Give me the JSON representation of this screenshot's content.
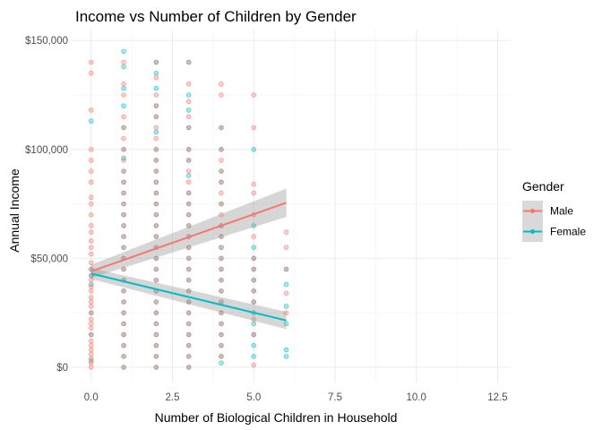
{
  "chart_data": {
    "type": "scatter",
    "title": "Income vs Number of Children by Gender",
    "xlabel": "Number of Biological Children in Household",
    "ylabel": "Annual Income",
    "xlim": [
      -0.6,
      12.9
    ],
    "ylim": [
      -7000,
      155000
    ],
    "x_ticks": [
      0,
      2.5,
      5,
      7.5,
      10,
      12.5
    ],
    "x_tick_labels": [
      "0.0",
      "2.5",
      "5.0",
      "7.5",
      "10.0",
      "12.5"
    ],
    "y_ticks": [
      0,
      50000,
      100000,
      150000
    ],
    "y_tick_labels": [
      "$0",
      "$50,000",
      "$100,000",
      "$150,000"
    ],
    "grid": true,
    "legend": {
      "title": "Gender",
      "position": "right"
    },
    "series": [
      {
        "name": "Male",
        "color": "#F8766D",
        "points": [
          [
            0,
            140000
          ],
          [
            0,
            135000
          ],
          [
            0,
            118000
          ],
          [
            0,
            100000
          ],
          [
            0,
            95000
          ],
          [
            0,
            90000
          ],
          [
            0,
            85000
          ],
          [
            0,
            78000
          ],
          [
            0,
            75000
          ],
          [
            0,
            70000
          ],
          [
            0,
            65000
          ],
          [
            0,
            62000
          ],
          [
            0,
            58000
          ],
          [
            0,
            55000
          ],
          [
            0,
            52000
          ],
          [
            0,
            48000
          ],
          [
            0,
            45000
          ],
          [
            0,
            42000
          ],
          [
            0,
            40000
          ],
          [
            0,
            37000
          ],
          [
            0,
            35000
          ],
          [
            0,
            32000
          ],
          [
            0,
            30000
          ],
          [
            0,
            28000
          ],
          [
            0,
            25000
          ],
          [
            0,
            22000
          ],
          [
            0,
            20000
          ],
          [
            0,
            18000
          ],
          [
            0,
            15000
          ],
          [
            0,
            12000
          ],
          [
            0,
            10000
          ],
          [
            0,
            8000
          ],
          [
            0,
            6000
          ],
          [
            0,
            4000
          ],
          [
            0,
            2000
          ],
          [
            0,
            0
          ],
          [
            1,
            140000
          ],
          [
            1,
            130000
          ],
          [
            1,
            125000
          ],
          [
            1,
            115000
          ],
          [
            1,
            110000
          ],
          [
            1,
            105000
          ],
          [
            1,
            100000
          ],
          [
            1,
            95000
          ],
          [
            1,
            90000
          ],
          [
            1,
            85000
          ],
          [
            1,
            80000
          ],
          [
            1,
            75000
          ],
          [
            1,
            70000
          ],
          [
            1,
            65000
          ],
          [
            1,
            60000
          ],
          [
            1,
            55000
          ],
          [
            1,
            50000
          ],
          [
            1,
            45000
          ],
          [
            1,
            40000
          ],
          [
            1,
            35000
          ],
          [
            1,
            30000
          ],
          [
            1,
            25000
          ],
          [
            1,
            20000
          ],
          [
            1,
            15000
          ],
          [
            1,
            10000
          ],
          [
            1,
            5000
          ],
          [
            1,
            0
          ],
          [
            2,
            140000
          ],
          [
            2,
            133000
          ],
          [
            2,
            125000
          ],
          [
            2,
            120000
          ],
          [
            2,
            115000
          ],
          [
            2,
            110000
          ],
          [
            2,
            105000
          ],
          [
            2,
            100000
          ],
          [
            2,
            95000
          ],
          [
            2,
            90000
          ],
          [
            2,
            85000
          ],
          [
            2,
            80000
          ],
          [
            2,
            75000
          ],
          [
            2,
            70000
          ],
          [
            2,
            65000
          ],
          [
            2,
            60000
          ],
          [
            2,
            55000
          ],
          [
            2,
            50000
          ],
          [
            2,
            45000
          ],
          [
            2,
            40000
          ],
          [
            2,
            35000
          ],
          [
            2,
            30000
          ],
          [
            2,
            25000
          ],
          [
            2,
            20000
          ],
          [
            2,
            15000
          ],
          [
            2,
            10000
          ],
          [
            2,
            5000
          ],
          [
            2,
            0
          ],
          [
            3,
            140000
          ],
          [
            3,
            130000
          ],
          [
            3,
            122000
          ],
          [
            3,
            115000
          ],
          [
            3,
            110000
          ],
          [
            3,
            100000
          ],
          [
            3,
            95000
          ],
          [
            3,
            90000
          ],
          [
            3,
            85000
          ],
          [
            3,
            80000
          ],
          [
            3,
            75000
          ],
          [
            3,
            70000
          ],
          [
            3,
            65000
          ],
          [
            3,
            60000
          ],
          [
            3,
            55000
          ],
          [
            3,
            50000
          ],
          [
            3,
            45000
          ],
          [
            3,
            40000
          ],
          [
            3,
            35000
          ],
          [
            3,
            30000
          ],
          [
            3,
            25000
          ],
          [
            3,
            20000
          ],
          [
            3,
            15000
          ],
          [
            3,
            10000
          ],
          [
            3,
            5000
          ],
          [
            3,
            0
          ],
          [
            4,
            130000
          ],
          [
            4,
            125000
          ],
          [
            4,
            110000
          ],
          [
            4,
            100000
          ],
          [
            4,
            95000
          ],
          [
            4,
            90000
          ],
          [
            4,
            85000
          ],
          [
            4,
            80000
          ],
          [
            4,
            75000
          ],
          [
            4,
            70000
          ],
          [
            4,
            65000
          ],
          [
            4,
            60000
          ],
          [
            4,
            55000
          ],
          [
            4,
            50000
          ],
          [
            4,
            45000
          ],
          [
            4,
            40000
          ],
          [
            4,
            35000
          ],
          [
            4,
            30000
          ],
          [
            4,
            25000
          ],
          [
            4,
            20000
          ],
          [
            4,
            15000
          ],
          [
            4,
            10000
          ],
          [
            4,
            5000
          ],
          [
            5,
            125000
          ],
          [
            5,
            110000
          ],
          [
            5,
            84000
          ],
          [
            5,
            80000
          ],
          [
            5,
            70000
          ],
          [
            5,
            60000
          ],
          [
            5,
            50000
          ],
          [
            5,
            45000
          ],
          [
            5,
            40000
          ],
          [
            5,
            35000
          ],
          [
            5,
            30000
          ],
          [
            5,
            22000
          ],
          [
            5,
            15000
          ],
          [
            5,
            1000
          ],
          [
            6,
            62000
          ],
          [
            6,
            55000
          ],
          [
            6,
            45000
          ],
          [
            6,
            34000
          ],
          [
            6,
            25000
          ]
        ],
        "trend": {
          "x": [
            0,
            6
          ],
          "y": [
            44000,
            75500
          ],
          "ci_lower": [
            41000,
            69000
          ],
          "ci_upper": [
            47000,
            82000
          ]
        }
      },
      {
        "name": "Female",
        "color": "#00BFC4",
        "points": [
          [
            0,
            113000
          ],
          [
            0,
            45000
          ],
          [
            0,
            42000
          ],
          [
            0,
            38000
          ],
          [
            0,
            25000
          ],
          [
            0,
            15000
          ],
          [
            0,
            3000
          ],
          [
            1,
            145000
          ],
          [
            1,
            138000
          ],
          [
            1,
            128000
          ],
          [
            1,
            120000
          ],
          [
            1,
            110000
          ],
          [
            1,
            100000
          ],
          [
            1,
            96000
          ],
          [
            1,
            90000
          ],
          [
            1,
            85000
          ],
          [
            1,
            80000
          ],
          [
            1,
            75000
          ],
          [
            1,
            70000
          ],
          [
            1,
            65000
          ],
          [
            1,
            60000
          ],
          [
            1,
            55000
          ],
          [
            1,
            50000
          ],
          [
            1,
            45000
          ],
          [
            1,
            40000
          ],
          [
            1,
            35000
          ],
          [
            1,
            30000
          ],
          [
            1,
            25000
          ],
          [
            1,
            20000
          ],
          [
            1,
            15000
          ],
          [
            1,
            10000
          ],
          [
            1,
            5000
          ],
          [
            1,
            0
          ],
          [
            2,
            140000
          ],
          [
            2,
            135000
          ],
          [
            2,
            128000
          ],
          [
            2,
            120000
          ],
          [
            2,
            115000
          ],
          [
            2,
            108000
          ],
          [
            2,
            100000
          ],
          [
            2,
            95000
          ],
          [
            2,
            90000
          ],
          [
            2,
            85000
          ],
          [
            2,
            80000
          ],
          [
            2,
            75000
          ],
          [
            2,
            70000
          ],
          [
            2,
            65000
          ],
          [
            2,
            60000
          ],
          [
            2,
            55000
          ],
          [
            2,
            50000
          ],
          [
            2,
            45000
          ],
          [
            2,
            40000
          ],
          [
            2,
            35000
          ],
          [
            2,
            30000
          ],
          [
            2,
            25000
          ],
          [
            2,
            20000
          ],
          [
            2,
            15000
          ],
          [
            2,
            10000
          ],
          [
            2,
            5000
          ],
          [
            2,
            0
          ],
          [
            3,
            140000
          ],
          [
            3,
            125000
          ],
          [
            3,
            118000
          ],
          [
            3,
            110000
          ],
          [
            3,
            100000
          ],
          [
            3,
            95000
          ],
          [
            3,
            88000
          ],
          [
            3,
            80000
          ],
          [
            3,
            75000
          ],
          [
            3,
            70000
          ],
          [
            3,
            65000
          ],
          [
            3,
            60000
          ],
          [
            3,
            55000
          ],
          [
            3,
            50000
          ],
          [
            3,
            45000
          ],
          [
            3,
            40000
          ],
          [
            3,
            35000
          ],
          [
            3,
            30000
          ],
          [
            3,
            25000
          ],
          [
            3,
            20000
          ],
          [
            3,
            15000
          ],
          [
            3,
            10000
          ],
          [
            3,
            5000
          ],
          [
            3,
            0
          ],
          [
            4,
            110000
          ],
          [
            4,
            100000
          ],
          [
            4,
            90000
          ],
          [
            4,
            85000
          ],
          [
            4,
            75000
          ],
          [
            4,
            65000
          ],
          [
            4,
            60000
          ],
          [
            4,
            55000
          ],
          [
            4,
            50000
          ],
          [
            4,
            45000
          ],
          [
            4,
            40000
          ],
          [
            4,
            35000
          ],
          [
            4,
            30000
          ],
          [
            4,
            25000
          ],
          [
            4,
            20000
          ],
          [
            4,
            15000
          ],
          [
            4,
            10000
          ],
          [
            4,
            5000
          ],
          [
            4,
            2000
          ],
          [
            5,
            100000
          ],
          [
            5,
            65000
          ],
          [
            5,
            55000
          ],
          [
            5,
            50000
          ],
          [
            5,
            45000
          ],
          [
            5,
            40000
          ],
          [
            5,
            35000
          ],
          [
            5,
            30000
          ],
          [
            5,
            25000
          ],
          [
            5,
            20000
          ],
          [
            5,
            15000
          ],
          [
            5,
            10000
          ],
          [
            5,
            5000
          ],
          [
            6,
            45000
          ],
          [
            6,
            38000
          ],
          [
            6,
            28000
          ],
          [
            6,
            20000
          ],
          [
            6,
            8000
          ],
          [
            6,
            5000
          ]
        ],
        "trend": {
          "x": [
            0,
            6
          ],
          "y": [
            43000,
            21500
          ],
          "ci_lower": [
            40500,
            17500
          ],
          "ci_upper": [
            45500,
            25500
          ]
        }
      }
    ]
  }
}
